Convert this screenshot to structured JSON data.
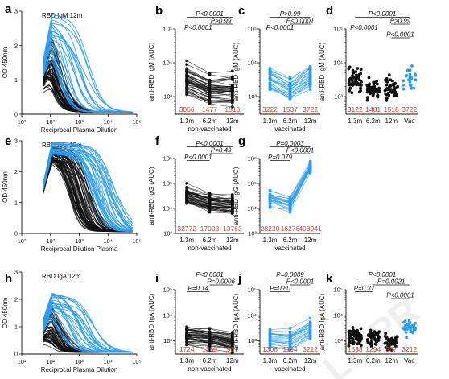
{
  "colors": {
    "black": "#111111",
    "blue": "#2a9df4",
    "red": "#e03a2f",
    "purple": "#8a5cd6"
  },
  "watermark": "LE PR",
  "chart_data": [
    {
      "id": "a",
      "type": "line",
      "title": "RBD IgM 12m",
      "ylabel": "OD 450nm",
      "xlabel": "Reciprocal Plasma Dilution",
      "x_scale": "log",
      "xlim": [
        10,
        100000
      ],
      "xticks": [
        "10¹",
        "10²",
        "10³",
        "10⁴",
        "10⁵"
      ],
      "ylim": [
        0,
        3
      ],
      "yticks": [
        "0",
        "1",
        "2",
        "3"
      ],
      "n_black": 60,
      "n_blue": 22,
      "seed": 11,
      "bmid": [
        1.9,
        2.5
      ],
      "umid": [
        2.2,
        3.4
      ],
      "btop": [
        1.6,
        2.7
      ],
      "utop": [
        2.1,
        2.9
      ]
    },
    {
      "id": "b",
      "type": "scatter-paired",
      "ylabel": "anti-RBD IgM (AUC)",
      "y_scale": "log",
      "ylim": [
        300,
        100000
      ],
      "yticks": [
        "10³",
        "10⁴",
        "10⁵"
      ],
      "categories": [
        "1.3m",
        "6.2m",
        "12m"
      ],
      "group": "non-vaccinated",
      "medians": [
        3066,
        1477,
        1518
      ],
      "medians_text": [
        "3066",
        "1477",
        "1518"
      ],
      "color": "black",
      "n": 50,
      "seed": 21,
      "pvalues": [
        {
          "label": "P<0.0001",
          "from": 0,
          "to": 2
        },
        {
          "label": "P>0.99",
          "from": 1,
          "to": 2
        },
        {
          "label": "P<0.0001",
          "from": 0,
          "to": 1
        }
      ]
    },
    {
      "id": "c",
      "type": "scatter-paired",
      "ylabel": "anti-RBD IgM (AUC)",
      "y_scale": "log",
      "ylim": [
        300,
        100000
      ],
      "yticks": [
        "10³",
        "10⁴",
        "10⁵"
      ],
      "categories": [
        "1.3m",
        "6.2m",
        "12m"
      ],
      "group": "vaccinated",
      "medians": [
        3222,
        1537,
        3722
      ],
      "medians_text": [
        "3222",
        "1537",
        "3722"
      ],
      "color": "blue",
      "n": 28,
      "seed": 31,
      "pvalues": [
        {
          "label": "P>0.99",
          "from": 0,
          "to": 2
        },
        {
          "label": "P<0.0001",
          "from": 1,
          "to": 2
        },
        {
          "label": "P<0.0001",
          "from": 0,
          "to": 1
        }
      ]
    },
    {
      "id": "d",
      "type": "scatter",
      "ylabel": "anti-RBD IgM (AUC)",
      "y_scale": "log",
      "ylim": [
        300,
        100000
      ],
      "yticks": [
        "10³",
        "10⁴",
        "10⁵"
      ],
      "categories": [
        "1.3m",
        "6.2m",
        "12m",
        "Vac"
      ],
      "medians": [
        3122,
        1481,
        1518,
        3722
      ],
      "medians_text": [
        "3122",
        "1481",
        "1518",
        "3722"
      ],
      "n": [
        60,
        45,
        40,
        22
      ],
      "seed": 41,
      "pvalues": [
        {
          "label": "P<0.0001",
          "from": 0,
          "to": 3
        },
        {
          "label": "P>0.99",
          "from": 2,
          "to": 3
        },
        {
          "label": "P<0.0001",
          "from": 0,
          "to": 1
        },
        {
          "label": "P<0.0001",
          "from": 2,
          "to": 3
        }
      ]
    },
    {
      "id": "e",
      "type": "line",
      "title": "RBD IgG 12m",
      "ylabel": "OD 450nm",
      "xlabel": "Reciprocal Dilution Plasma",
      "x_scale": "log",
      "xlim": [
        10,
        100000
      ],
      "xticks": [
        "10¹",
        "10²",
        "10³",
        "10⁴",
        "10⁵"
      ],
      "ylim": [
        0,
        3
      ],
      "yticks": [
        "0",
        "1",
        "2",
        "3"
      ],
      "n_black": 60,
      "n_blue": 28,
      "seed": 51,
      "bmid": [
        2.6,
        3.4
      ],
      "umid": [
        3.3,
        4.3
      ],
      "btop": [
        2.3,
        2.8
      ],
      "utop": [
        2.5,
        2.9
      ]
    },
    {
      "id": "f",
      "type": "scatter-paired",
      "ylabel": "anti-RBD IgG (AUC)",
      "y_scale": "log",
      "ylim": [
        1000,
        1000000
      ],
      "yticks": [
        "10³",
        "10⁴",
        "10⁵",
        "10⁶"
      ],
      "categories": [
        "1.3m",
        "6.2m",
        "12m"
      ],
      "group": "non-vaccinated",
      "medians": [
        32772,
        17003,
        13763
      ],
      "medians_text": [
        "32772",
        "17003",
        "13763"
      ],
      "color": "black",
      "n": 50,
      "seed": 61,
      "pvalues": [
        {
          "label": "P<0.0001",
          "from": 0,
          "to": 2
        },
        {
          "label": "P=0.49",
          "from": 1,
          "to": 2
        },
        {
          "label": "P<0.0001",
          "from": 0,
          "to": 1
        }
      ]
    },
    {
      "id": "g",
      "type": "scatter-paired",
      "ylabel": "anti-RBD IgG (AUC)",
      "y_scale": "log",
      "ylim": [
        1000,
        1000000
      ],
      "yticks": [
        "10³",
        "10⁴",
        "10⁵",
        "10⁶"
      ],
      "categories": [
        "1.3m",
        "6.2m",
        "12m"
      ],
      "group": "vaccinated",
      "medians": [
        28230,
        16276,
        408941
      ],
      "medians_text": [
        "28230",
        "16276",
        "408941"
      ],
      "color": "blue",
      "n": 26,
      "seed": 71,
      "pvalues": [
        {
          "label": "P=0.0003",
          "from": 0,
          "to": 2
        },
        {
          "label": "P<0.0001",
          "from": 1,
          "to": 2
        },
        {
          "label": "P=0.079",
          "from": 0,
          "to": 1
        }
      ]
    },
    {
      "id": "h",
      "type": "line",
      "title": "RBD IgA 12m",
      "ylabel": "OD 450nm",
      "xlabel": "Reciprocal Plasma Dilution",
      "x_scale": "log",
      "xlim": [
        10,
        100000
      ],
      "xticks": [
        "10¹",
        "10²",
        "10³",
        "10⁴",
        "10⁵"
      ],
      "ylim": [
        0,
        3
      ],
      "yticks": [
        "0",
        "1",
        "2",
        "3"
      ],
      "n_black": 60,
      "n_blue": 26,
      "seed": 81,
      "bmid": [
        1.7,
        2.4
      ],
      "umid": [
        2.2,
        3.6
      ],
      "btop": [
        1.2,
        2.2
      ],
      "utop": [
        1.5,
        2.4
      ]
    },
    {
      "id": "i",
      "type": "scatter-paired",
      "ylabel": "anti-RBD IgA (AUC)",
      "y_scale": "log",
      "ylim": [
        300,
        100000
      ],
      "yticks": [
        "10³",
        "10⁴",
        "10⁵"
      ],
      "categories": [
        "1.3m",
        "6.2m",
        "12m"
      ],
      "group": "non-vaccinated",
      "medians": [
        1724,
        1369,
        987
      ],
      "medians_text": [
        "1724",
        "1369",
        "987"
      ],
      "color": "black",
      "n": 50,
      "seed": 91,
      "pvalues": [
        {
          "label": "P<0.0001",
          "from": 0,
          "to": 2
        },
        {
          "label": "P=0.0006",
          "from": 1,
          "to": 2
        },
        {
          "label": "P=0.14",
          "from": 0,
          "to": 1
        }
      ]
    },
    {
      "id": "j",
      "type": "scatter-paired",
      "ylabel": "anti-RBD IgA (AUC)",
      "y_scale": "log",
      "ylim": [
        300,
        100000
      ],
      "yticks": [
        "10³",
        "10⁴",
        "10⁵"
      ],
      "categories": [
        "1.3m",
        "6.2m",
        "12m"
      ],
      "group": "vaccinated",
      "medians": [
        1308,
        1194,
        3212
      ],
      "medians_text": [
        "1308",
        "1194",
        "3212"
      ],
      "color": "blue",
      "n": 26,
      "seed": 101,
      "pvalues": [
        {
          "label": "P=0.0009",
          "from": 0,
          "to": 2
        },
        {
          "label": "P<0.0001",
          "from": 1,
          "to": 2
        },
        {
          "label": "P=0.80",
          "from": 0,
          "to": 1
        }
      ]
    },
    {
      "id": "k",
      "type": "scatter",
      "ylabel": "anti-RBD IgA (AUC)",
      "y_scale": "log",
      "ylim": [
        300,
        100000
      ],
      "yticks": [
        "10³",
        "10⁴",
        "10⁵"
      ],
      "categories": [
        "1.3m",
        "6.2m",
        "12m",
        "Vac"
      ],
      "medians": [
        1538,
        1294,
        987,
        3212
      ],
      "medians_text": [
        "1538",
        "1294",
        "987",
        "3212"
      ],
      "n": [
        60,
        45,
        40,
        26
      ],
      "seed": 111,
      "pvalues": [
        {
          "label": "P<0.0001",
          "from": 0,
          "to": 3
        },
        {
          "label": "P=0.0021",
          "from": 1,
          "to": 3
        },
        {
          "label": "P=0.37",
          "from": 0,
          "to": 1
        },
        {
          "label": "P<0.0001",
          "from": 2,
          "to": 3
        }
      ]
    }
  ]
}
